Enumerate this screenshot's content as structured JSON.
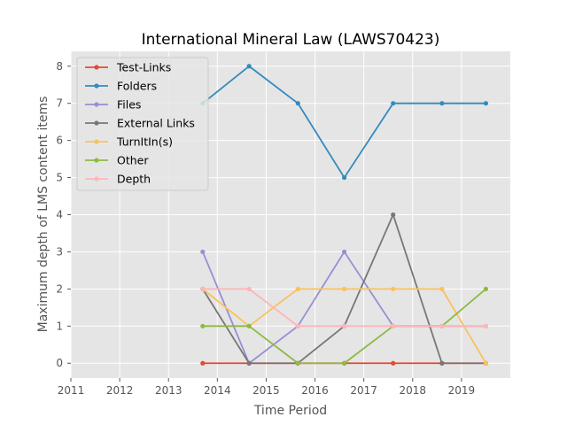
{
  "chart_data": {
    "type": "line",
    "title": "International Mineral Law (LAWS70423)",
    "xlabel": "Time Period",
    "ylabel": "Maximum depth of LMS content items",
    "xlim": [
      2011,
      2020
    ],
    "ylim": [
      -0.4,
      8.4
    ],
    "xticks": [
      "2011",
      "2012",
      "2013",
      "2014",
      "2015",
      "2016",
      "2017",
      "2018",
      "2019"
    ],
    "yticks": [
      "0",
      "1",
      "2",
      "3",
      "4",
      "5",
      "6",
      "7",
      "8"
    ],
    "x": [
      2013.7,
      2014.65,
      2015.65,
      2016.6,
      2017.6,
      2018.6,
      2019.5
    ],
    "grid": true,
    "legend_position": "upper-left",
    "series": [
      {
        "name": "Test-Links",
        "color": "#e24a33",
        "values": [
          0,
          0,
          0,
          0,
          0,
          0,
          0
        ]
      },
      {
        "name": "Folders",
        "color": "#348abd",
        "values": [
          7,
          8,
          7,
          5,
          7,
          7,
          7
        ]
      },
      {
        "name": "Files",
        "color": "#988ed5",
        "values": [
          3,
          0,
          1,
          3,
          1,
          1,
          1
        ]
      },
      {
        "name": "External Links",
        "color": "#777777",
        "values": [
          2,
          0,
          0,
          1,
          4,
          0,
          0
        ]
      },
      {
        "name": "TurnItIn(s)",
        "color": "#fbc15e",
        "values": [
          2,
          1,
          2,
          2,
          2,
          2,
          0
        ]
      },
      {
        "name": "Other",
        "color": "#8eba42",
        "values": [
          1,
          1,
          0,
          0,
          1,
          1,
          2
        ]
      },
      {
        "name": "Depth",
        "color": "#ffb5b8",
        "values": [
          2,
          2,
          1,
          1,
          1,
          1,
          1
        ]
      }
    ]
  }
}
